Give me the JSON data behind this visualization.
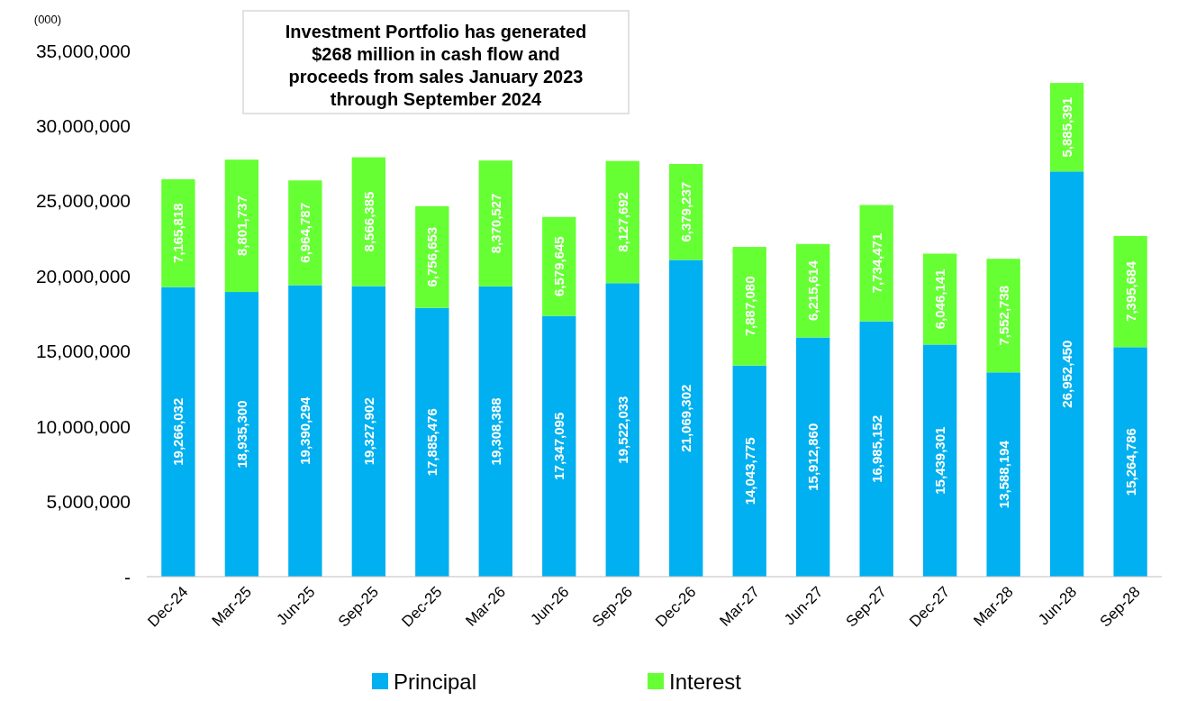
{
  "chart_data": {
    "type": "bar",
    "stacked": true,
    "ylabel": "(000)",
    "annotations": [
      "Investment Portfolio has generated $268 million in cash flow and proceeds from sales January 2023 through September 2024"
    ],
    "categories": [
      "Dec-24",
      "Mar-25",
      "Jun-25",
      "Sep-25",
      "Dec-25",
      "Mar-26",
      "Jun-26",
      "Sep-26",
      "Dec-26",
      "Mar-27",
      "Jun-27",
      "Sep-27",
      "Dec-27",
      "Mar-28",
      "Jun-28",
      "Sep-28"
    ],
    "series": [
      {
        "name": "Principal",
        "color": "#00b0f0",
        "values": [
          19266032,
          18935300,
          19390294,
          19327902,
          17885476,
          19308388,
          17347095,
          19522033,
          21069302,
          14043775,
          15912860,
          16985152,
          15439301,
          13588194,
          26952450,
          15264786
        ],
        "value_labels": [
          "19,266,032",
          "18,935,300",
          "19,390,294",
          "19,327,902",
          "17,885,476",
          "19,308,388",
          "17,347,095",
          "19,522,033",
          "21,069,302",
          "14,043,775",
          "15,912,860",
          "16,985,152",
          "15,439,301",
          "13,588,194",
          "26,952,450",
          "15,264,786"
        ]
      },
      {
        "name": "Interest",
        "color": "#66ff33",
        "values": [
          7165818,
          8801737,
          6964787,
          8566385,
          6756653,
          8370527,
          6579645,
          8127692,
          6379237,
          7887080,
          6215614,
          7734471,
          6046141,
          7552738,
          5885391,
          7395684
        ],
        "value_labels": [
          "7,165,818",
          "8,801,737",
          "6,964,787",
          "8,566,385",
          "6,756,653",
          "8,370,527",
          "6,579,645",
          "8,127,692",
          "6,379,237",
          "7,887,080",
          "6,215,614",
          "7,734,471",
          "6,046,141",
          "7,552,738",
          "5,885,391",
          "7,395,684"
        ]
      }
    ],
    "ylim": [
      0,
      35000000
    ],
    "yticks": [
      {
        "value": 0,
        "label": "-"
      },
      {
        "value": 5000000,
        "label": "5,000,000"
      },
      {
        "value": 10000000,
        "label": "10,000,000"
      },
      {
        "value": 15000000,
        "label": "15,000,000"
      },
      {
        "value": 20000000,
        "label": "20,000,000"
      },
      {
        "value": 25000000,
        "label": "25,000,000"
      },
      {
        "value": 30000000,
        "label": "30,000,000"
      },
      {
        "value": 35000000,
        "label": "35,000,000"
      }
    ],
    "grid": false,
    "legend": "bottom"
  }
}
